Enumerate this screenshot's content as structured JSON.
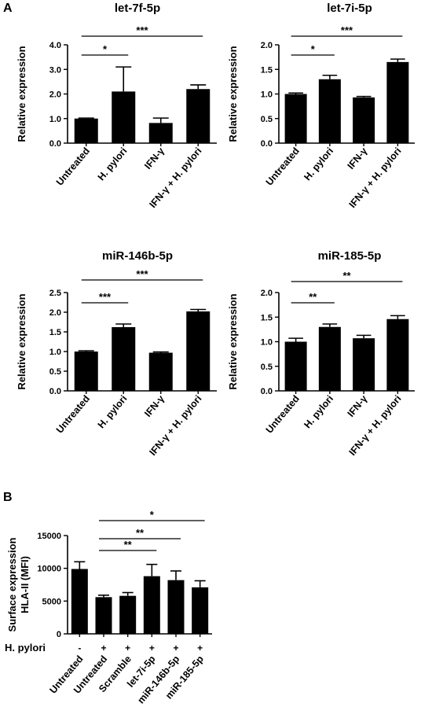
{
  "panels": {
    "a": "A",
    "b": "B"
  },
  "chart_data": [
    {
      "type": "bar",
      "title": "let-7f-5p",
      "ylabel": "Relative expression",
      "categories": [
        "Untreated",
        "H. pylori",
        "IFN-γ",
        "IFN-γ + H. pylori"
      ],
      "values": [
        1.0,
        2.1,
        0.82,
        2.2
      ],
      "errors": [
        0.02,
        1.0,
        0.2,
        0.17
      ],
      "ylim": [
        0,
        4.0
      ],
      "yticks": [
        "0.0",
        "1.0",
        "2.0",
        "3.0",
        "4.0"
      ],
      "significance": [
        {
          "from": 0,
          "to": 1,
          "label": "*"
        },
        {
          "from": 0,
          "to": 3,
          "label": "***"
        }
      ]
    },
    {
      "type": "bar",
      "title": "let-7i-5p",
      "ylabel": "Relative expression",
      "categories": [
        "Untreated",
        "H. pylori",
        "IFN-γ",
        "IFN-γ + H. pylori"
      ],
      "values": [
        1.0,
        1.3,
        0.93,
        1.65
      ],
      "errors": [
        0.02,
        0.08,
        0.02,
        0.06
      ],
      "ylim": [
        0,
        2.0
      ],
      "yticks": [
        "0.0",
        "0.5",
        "1.0",
        "1.5",
        "2.0"
      ],
      "significance": [
        {
          "from": 0,
          "to": 1,
          "label": "*"
        },
        {
          "from": 0,
          "to": 3,
          "label": "***"
        }
      ]
    },
    {
      "type": "bar",
      "title": "miR-146b-5p",
      "ylabel": "Relative expression",
      "categories": [
        "Untreated",
        "H. pylori",
        "IFN-γ",
        "IFN-γ + H. pylori"
      ],
      "values": [
        1.0,
        1.62,
        0.97,
        2.02
      ],
      "errors": [
        0.02,
        0.08,
        0.02,
        0.05
      ],
      "ylim": [
        0,
        2.5
      ],
      "yticks": [
        "0.0",
        "0.5",
        "1.0",
        "1.5",
        "2.0",
        "2.5"
      ],
      "significance": [
        {
          "from": 0,
          "to": 1,
          "label": "***"
        },
        {
          "from": 0,
          "to": 3,
          "label": "***"
        }
      ]
    },
    {
      "type": "bar",
      "title": "miR-185-5p",
      "ylabel": "Relative expression",
      "categories": [
        "Untreated",
        "H. pylori",
        "IFN-γ",
        "IFN-γ + H. pylori"
      ],
      "values": [
        1.0,
        1.3,
        1.07,
        1.46
      ],
      "errors": [
        0.07,
        0.06,
        0.06,
        0.07
      ],
      "ylim": [
        0,
        2.0
      ],
      "yticks": [
        "0.0",
        "0.5",
        "1.0",
        "1.5",
        "2.0"
      ],
      "significance": [
        {
          "from": 0,
          "to": 1,
          "label": "**"
        },
        {
          "from": 0,
          "to": 3,
          "label": "**"
        }
      ]
    },
    {
      "type": "bar",
      "title": "",
      "ylabel": "Surface expression HLA-II (MFI)",
      "ylabel_lines": [
        "Surface expression",
        "HLA-II (MFI)"
      ],
      "categories": [
        "Untreated",
        "Untreated",
        "Scramble",
        "let-7i-5p",
        "miR-146b-5p",
        "miR-185-5p"
      ],
      "values": [
        9900,
        5600,
        5800,
        8800,
        8200,
        7100
      ],
      "errors": [
        1100,
        300,
        500,
        1800,
        1400,
        1000
      ],
      "ylim": [
        0,
        15000
      ],
      "yticks": [
        "0",
        "5000",
        "10000",
        "15000"
      ],
      "hpylori_label": "H. pylori",
      "hpylori_signs": [
        "-",
        "+",
        "+",
        "+",
        "+",
        "+"
      ],
      "significance": [
        {
          "from": 1,
          "to": 3,
          "label": "**"
        },
        {
          "from": 1,
          "to": 4,
          "label": "**"
        },
        {
          "from": 1,
          "to": 5,
          "label": "*"
        }
      ]
    }
  ]
}
